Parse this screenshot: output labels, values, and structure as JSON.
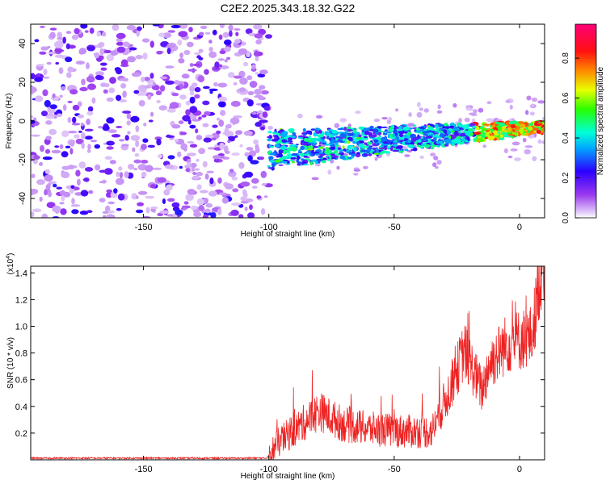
{
  "chart_data": [
    {
      "type": "heatmap",
      "title": "C2E2.2025.343.18.32.G22",
      "xlabel": "Height of straight line (km)",
      "ylabel": "Frequency (Hz)",
      "xlim": [
        -195,
        10
      ],
      "ylim": [
        -50,
        50
      ],
      "xticks": [
        -150,
        -100,
        -50,
        0
      ],
      "yticks": [
        40,
        20,
        0,
        -20,
        -40
      ],
      "colorbar": {
        "label": "Normalized spectral amplitude",
        "range": [
          0,
          0.97
        ],
        "ticks": [
          "0.0",
          "0.2",
          "0.4",
          "0.6",
          "0.8"
        ]
      },
      "features": [
        {
          "name": "noise",
          "x_range": [
            -195,
            -100
          ],
          "f_range": [
            -50,
            50
          ]
        },
        {
          "name": "signal_band",
          "x_range": [
            -100,
            10
          ],
          "center_start": -15,
          "center_end": -3
        }
      ]
    },
    {
      "type": "line",
      "xlabel": "Height of straight line (km)",
      "ylabel": "SNR (10 * v/v)",
      "scale_label": "(x10",
      "scale_exp": "4",
      "scale_close": ")",
      "xlim": [
        -195,
        10
      ],
      "ylim": [
        0,
        1.45
      ],
      "xticks": [
        -150,
        -100,
        -50,
        0
      ],
      "yticks": [
        "0.2",
        "0.4",
        "0.6",
        "0.8",
        "1.0",
        "1.2",
        "1.4"
      ],
      "series": [
        {
          "name": "SNR",
          "color": "#ee2222",
          "key_points": [
            {
              "x": -195,
              "y": 0.01
            },
            {
              "x": -101,
              "y": 0.01
            },
            {
              "x": -96,
              "y": 0.12
            },
            {
              "x": -80,
              "y": 0.35
            },
            {
              "x": -70,
              "y": 0.25
            },
            {
              "x": -60,
              "y": 0.22
            },
            {
              "x": -45,
              "y": 0.2
            },
            {
              "x": -35,
              "y": 0.2
            },
            {
              "x": -28,
              "y": 0.5
            },
            {
              "x": -22,
              "y": 0.8
            },
            {
              "x": -15,
              "y": 0.5
            },
            {
              "x": -12,
              "y": 0.7
            },
            {
              "x": -5,
              "y": 0.85
            },
            {
              "x": 5,
              "y": 0.9
            },
            {
              "x": 9,
              "y": 1.45
            }
          ]
        }
      ]
    }
  ]
}
